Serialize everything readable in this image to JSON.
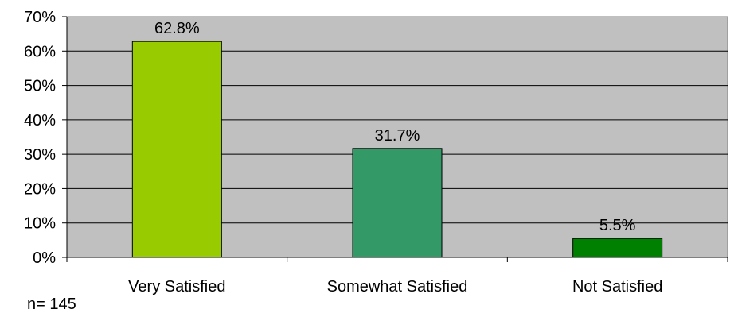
{
  "note": "n= 145",
  "chart_data": {
    "type": "bar",
    "categories": [
      "Very Satisfied",
      "Somewhat Satisfied",
      "Not Satisfied"
    ],
    "values": [
      62.8,
      31.7,
      5.5
    ],
    "data_labels": [
      "62.8%",
      "31.7%",
      "5.5%"
    ],
    "ylim": [
      0,
      70
    ],
    "y_ticks": [
      0,
      10,
      20,
      30,
      40,
      50,
      60,
      70
    ],
    "y_tick_labels": [
      "0%",
      "10%",
      "20%",
      "30%",
      "40%",
      "50%",
      "60%",
      "70%"
    ],
    "grid": true,
    "legend": "none",
    "colors": {
      "plot_background": "#c0c0c0",
      "bars": [
        "#99cc00",
        "#339966",
        "#008000"
      ],
      "gridline": "#000000"
    }
  }
}
